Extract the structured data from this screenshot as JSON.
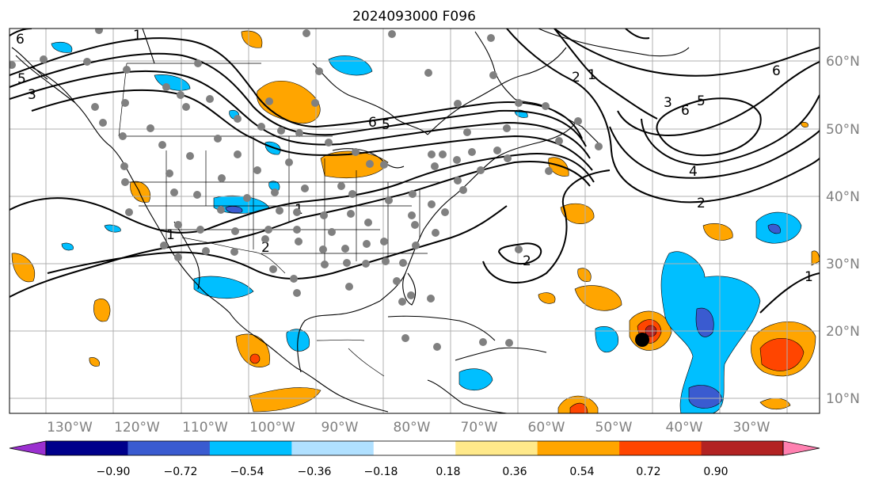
{
  "title": "2024093000 F096",
  "longitude_labels": [
    "130°W",
    "120°W",
    "110°W",
    "100°W",
    "90°W",
    "80°W",
    "70°W",
    "60°W",
    "50°W",
    "40°W",
    "30°W"
  ],
  "latitude_labels": [
    "60°N",
    "50°N",
    "40°N",
    "30°N",
    "20°N",
    "10°N"
  ],
  "colorbar": {
    "ticks": [
      "−0.90",
      "−0.72",
      "−0.54",
      "−0.36",
      "−0.18",
      "0.18",
      "0.36",
      "0.54",
      "0.72",
      "0.90"
    ],
    "colors": [
      "#9b30d0",
      "#00008b",
      "#3a5bd0",
      "#00bfff",
      "#b0e0ff",
      "#ffffff",
      "#ffe98a",
      "#ffa500",
      "#ff4500",
      "#b22222",
      "#ff80b0"
    ]
  },
  "contour_labels": [
    "6",
    "5",
    "4",
    "3",
    "2",
    "1"
  ],
  "colors": {
    "landline": "#000000",
    "grid": "#b0b0b0",
    "station": "#808080",
    "storm": "#000000"
  }
}
